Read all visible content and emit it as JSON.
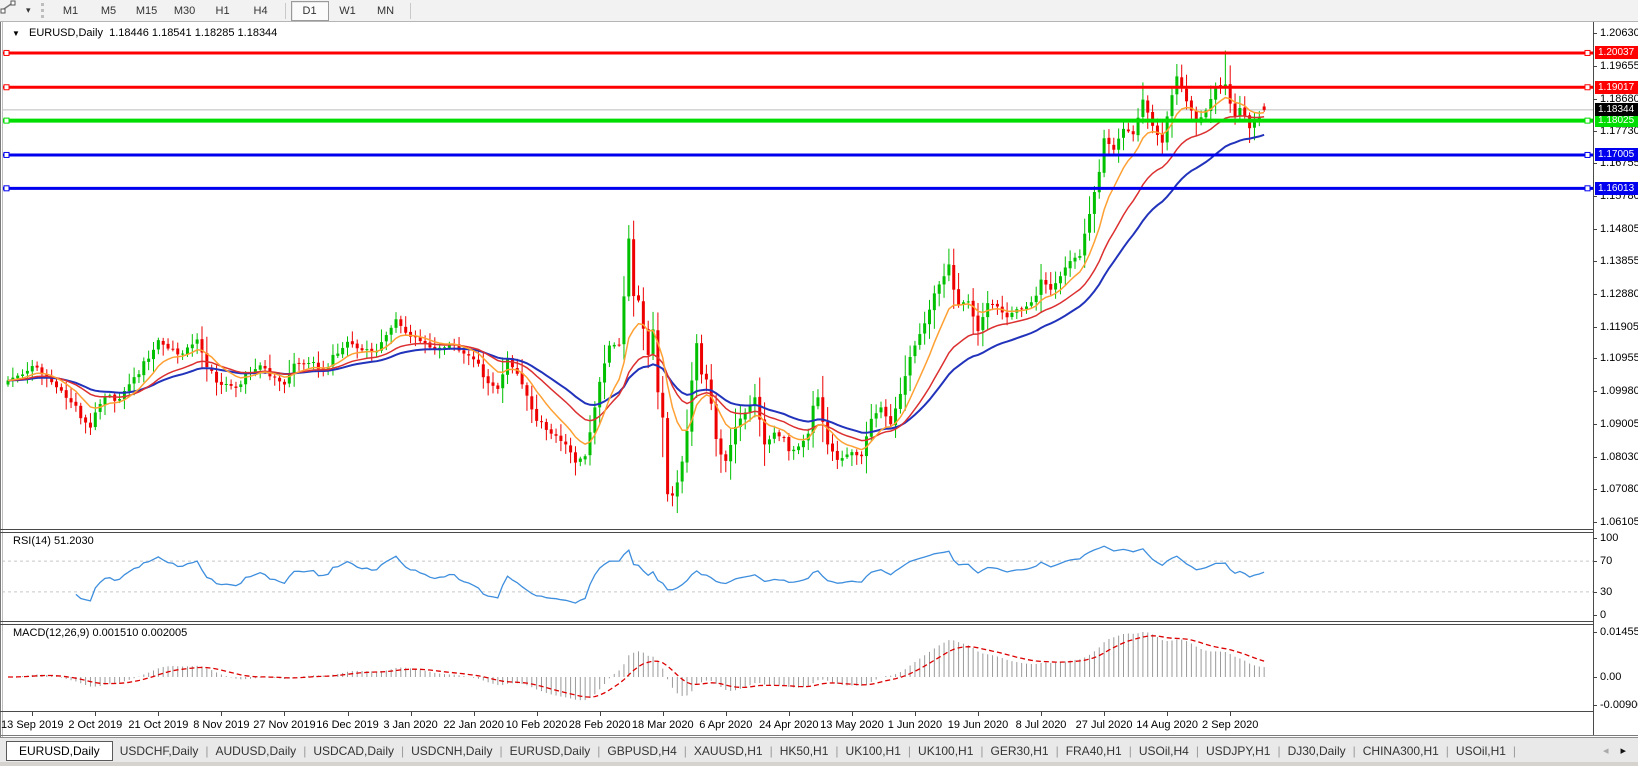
{
  "toolbar": {
    "line_studies_icon": "percent-chart-icon",
    "dropdown_icon": "▾",
    "timeframes": [
      "M1",
      "M5",
      "M15",
      "M30",
      "H1",
      "H4",
      "D1",
      "W1",
      "MN"
    ],
    "active_timeframe": "D1"
  },
  "title": {
    "marker": "▼",
    "symbol_period": "EURUSD,Daily",
    "ohlc_text": "1.18446 1.18541 1.18285 1.18344"
  },
  "chart_data": {
    "type": "candlestick",
    "symbol": "EURUSD",
    "timeframe": "Daily",
    "last_ohlc": {
      "open": 1.18446,
      "high": 1.18541,
      "low": 1.18285,
      "close": 1.18344
    },
    "price_axis_ticks": [
      "1.20630",
      "1.19655",
      "1.18680",
      "1.17730",
      "1.16755",
      "1.15780",
      "1.14805",
      "1.13855",
      "1.12880",
      "1.11905",
      "1.10955",
      "1.09980",
      "1.09005",
      "1.08030",
      "1.07080",
      "1.06105"
    ],
    "x_axis_dates": [
      "13 Sep 2019",
      "2 Oct 2019",
      "21 Oct 2019",
      "8 Nov 2019",
      "27 Nov 2019",
      "16 Dec 2019",
      "3 Jan 2020",
      "22 Jan 2020",
      "10 Feb 2020",
      "28 Feb 2020",
      "18 Mar 2020",
      "6 Apr 2020",
      "24 Apr 2020",
      "13 May 2020",
      "1 Jun 2020",
      "19 Jun 2020",
      "8 Jul 2020",
      "27 Jul 2020",
      "14 Aug 2020",
      "2 Sep 2020"
    ],
    "horizontal_lines": [
      {
        "label": "1.20037",
        "value": 1.20037,
        "color": "#FF0000",
        "width": 3
      },
      {
        "label": "1.19017",
        "value": 1.19017,
        "color": "#FF0000",
        "width": 3
      },
      {
        "label": "1.18025",
        "value": 1.18025,
        "color": "#00DD00",
        "width": 4
      },
      {
        "label": "1.17005",
        "value": 1.17005,
        "color": "#0000EE",
        "width": 3
      },
      {
        "label": "1.16013",
        "value": 1.16013,
        "color": "#0000EE",
        "width": 3
      }
    ],
    "current_price": {
      "label": "1.18344",
      "value": 1.18344,
      "line_color": "#BBBBBB",
      "tag_bg": "#000000"
    },
    "close_anchors": [
      [
        0,
        1.103
      ],
      [
        3,
        1.1048
      ],
      [
        5,
        1.1073
      ],
      [
        8,
        1.104
      ],
      [
        10,
        1.101
      ],
      [
        13,
        1.0965
      ],
      [
        16,
        1.0905
      ],
      [
        17,
        1.089
      ],
      [
        18,
        1.0935
      ],
      [
        20,
        1.0982
      ],
      [
        23,
        1.0975
      ],
      [
        26,
        1.104
      ],
      [
        29,
        1.1095
      ],
      [
        31,
        1.115
      ],
      [
        33,
        1.1125
      ],
      [
        36,
        1.111
      ],
      [
        39,
        1.1152
      ],
      [
        41,
        1.107
      ],
      [
        44,
        1.1017
      ],
      [
        47,
        1.1008
      ],
      [
        50,
        1.1053
      ],
      [
        52,
        1.1075
      ],
      [
        55,
        1.104
      ],
      [
        57,
        1.1018
      ],
      [
        59,
        1.108
      ],
      [
        62,
        1.1082
      ],
      [
        65,
        1.1065
      ],
      [
        68,
        1.111
      ],
      [
        70,
        1.1145
      ],
      [
        73,
        1.112
      ],
      [
        76,
        1.1118
      ],
      [
        78,
        1.1165
      ],
      [
        80,
        1.1212
      ],
      [
        82,
        1.1172
      ],
      [
        83,
        1.116
      ],
      [
        86,
        1.114
      ],
      [
        88,
        1.1122
      ],
      [
        91,
        1.1138
      ],
      [
        94,
        1.111
      ],
      [
        96,
        1.1093
      ],
      [
        99,
        1.1022
      ],
      [
        101,
        1.1005
      ],
      [
        103,
        1.1094
      ],
      [
        105,
        1.105
      ],
      [
        107,
        1.0985
      ],
      [
        109,
        1.091
      ],
      [
        112,
        1.0872
      ],
      [
        115,
        1.084
      ],
      [
        117,
        1.0786
      ],
      [
        119,
        1.0805
      ],
      [
        121,
        1.095
      ],
      [
        122,
        1.1026
      ],
      [
        124,
        1.1134
      ],
      [
        126,
        1.1136
      ],
      [
        127,
        1.128
      ],
      [
        128,
        1.1452
      ],
      [
        129,
        1.1281
      ],
      [
        130,
        1.1268
      ],
      [
        131,
        1.1184
      ],
      [
        132,
        1.1106
      ],
      [
        133,
        1.1182
      ],
      [
        134,
        1.0995
      ],
      [
        135,
        1.092
      ],
      [
        136,
        1.0692
      ],
      [
        137,
        1.0688
      ],
      [
        138,
        1.0727
      ],
      [
        139,
        1.0789
      ],
      [
        140,
        1.088
      ],
      [
        141,
        1.103
      ],
      [
        142,
        1.1141
      ],
      [
        143,
        1.1048
      ],
      [
        144,
        1.1033
      ],
      [
        145,
        1.0961
      ],
      [
        146,
        1.0856
      ],
      [
        147,
        1.081
      ],
      [
        148,
        1.0791
      ],
      [
        150,
        1.0892
      ],
      [
        152,
        1.0935
      ],
      [
        154,
        1.098
      ],
      [
        156,
        1.084
      ],
      [
        158,
        1.0875
      ],
      [
        160,
        1.086
      ],
      [
        161,
        1.082
      ],
      [
        163,
        1.0834
      ],
      [
        165,
        1.0872
      ],
      [
        166,
        1.0955
      ],
      [
        167,
        1.098
      ],
      [
        169,
        1.084
      ],
      [
        171,
        1.0794
      ],
      [
        173,
        1.081
      ],
      [
        174,
        1.0817
      ],
      [
        176,
        1.0805
      ],
      [
        178,
        1.0916
      ],
      [
        180,
        1.095
      ],
      [
        182,
        1.09
      ],
      [
        184,
        1.099
      ],
      [
        186,
        1.11
      ],
      [
        187,
        1.1134
      ],
      [
        189,
        1.12
      ],
      [
        191,
        1.1289
      ],
      [
        193,
        1.134
      ],
      [
        194,
        1.1375
      ],
      [
        195,
        1.13
      ],
      [
        196,
        1.1255
      ],
      [
        198,
        1.1265
      ],
      [
        200,
        1.1177
      ],
      [
        202,
        1.126
      ],
      [
        204,
        1.125
      ],
      [
        206,
        1.1218
      ],
      [
        208,
        1.1242
      ],
      [
        210,
        1.125
      ],
      [
        212,
        1.1282
      ],
      [
        213,
        1.133
      ],
      [
        215,
        1.13
      ],
      [
        217,
        1.134
      ],
      [
        219,
        1.1385
      ],
      [
        221,
        1.14
      ],
      [
        223,
        1.1525
      ],
      [
        225,
        1.165
      ],
      [
        226,
        1.175
      ],
      [
        228,
        1.1716
      ],
      [
        230,
        1.1778
      ],
      [
        232,
        1.1762
      ],
      [
        234,
        1.1865
      ],
      [
        236,
        1.1787
      ],
      [
        238,
        1.1737
      ],
      [
        239,
        1.1815
      ],
      [
        241,
        1.1934
      ],
      [
        243,
        1.186
      ],
      [
        245,
        1.1797
      ],
      [
        247,
        1.1833
      ],
      [
        249,
        1.1905
      ],
      [
        251,
        1.191
      ],
      [
        252,
        1.1853
      ],
      [
        253,
        1.1815
      ],
      [
        254,
        1.184
      ],
      [
        255,
        1.1817
      ],
      [
        256,
        1.178
      ],
      [
        257,
        1.1802
      ],
      [
        258,
        1.1814
      ],
      [
        259,
        1.18344
      ]
    ],
    "spike_highs": [
      [
        128,
        1.1492
      ],
      [
        194,
        1.1422
      ],
      [
        234,
        1.1916
      ],
      [
        241,
        1.1966
      ],
      [
        251,
        1.2011
      ]
    ],
    "spike_lows": [
      [
        17,
        1.0879
      ],
      [
        117,
        1.0778
      ],
      [
        135,
        1.0802
      ],
      [
        136,
        1.067
      ],
      [
        137,
        1.0656
      ],
      [
        138,
        1.0636
      ],
      [
        148,
        1.0768
      ],
      [
        171,
        1.0767
      ]
    ],
    "style": {
      "bull": "#00C000",
      "bear": "#EE0000",
      "ma_fast": "#FFA033",
      "ma_mid": "#DC3030",
      "ma_slow": "#2233BB",
      "rsi_line": "#3E8EDE",
      "rsi_level_dash": "#C8C8C8",
      "macd_hist": "#9A9A9A",
      "macd_signal": "#DD0000"
    }
  },
  "rsi": {
    "label": "RSI(14) 51.2030",
    "period": 14,
    "value": "51.2030",
    "axis_levels": [
      "100",
      "70",
      "30",
      "0"
    ]
  },
  "macd": {
    "label": "MACD(12,26,9) 0.001510 0.002005",
    "values": [
      "0.001510",
      "0.002005"
    ],
    "axis_labels": [
      "0.014556",
      "0.00",
      "-0.009005"
    ]
  },
  "tabs": {
    "items": [
      "EURUSD,Daily",
      "USDCHF,Daily",
      "AUDUSD,Daily",
      "USDCAD,Daily",
      "USDCNH,Daily",
      "EURUSD,Daily",
      "GBPUSD,H4",
      "XAUUSD,H1",
      "HK50,H1",
      "UK100,H1",
      "UK100,H1",
      "GER30,H1",
      "FRA40,H1",
      "USOil,H4",
      "USDJPY,H1",
      "DJ30,Daily",
      "CHINA300,H1",
      "USOil,H1"
    ],
    "active_index": 0,
    "scroll_left_icon": "◂",
    "scroll_right_icon": "▸"
  }
}
